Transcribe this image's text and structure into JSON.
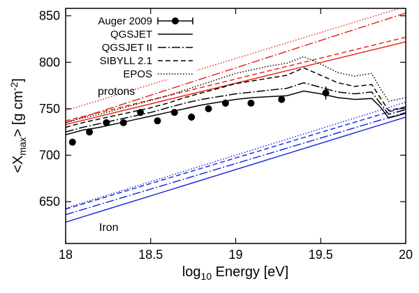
{
  "chart_data": {
    "type": "line",
    "xlabel_prefix": "log",
    "xlabel_sub": "10",
    "xlabel_suffix": " Energy [eV]",
    "ylabel_a": "<X",
    "ylabel_sub": "max",
    "ylabel_b": "> [g cm",
    "ylabel_sup": "-2",
    "ylabel_c": "]",
    "xlim": [
      18,
      20
    ],
    "ylim": [
      605,
      858
    ],
    "x_ticks": [
      18,
      18.5,
      19,
      19.5,
      20
    ],
    "x_tick_labels": [
      "18",
      "18.5",
      "19",
      "19.5",
      "20"
    ],
    "y_ticks": [
      650,
      700,
      750,
      800,
      850
    ],
    "y_tick_labels": [
      "650",
      "700",
      "750",
      "800",
      "850"
    ],
    "grid": false,
    "legend_position": "top-left",
    "legend": [
      {
        "label": "Auger 2009",
        "style": "points-errorbars"
      },
      {
        "label": "QGSJET",
        "style": "solid"
      },
      {
        "label": "QGSJET II",
        "style": "dashdot"
      },
      {
        "label": "SIBYLL 2.1",
        "style": "dashed"
      },
      {
        "label": "EPOS",
        "style": "dotted"
      }
    ],
    "annotations": {
      "protons": "protons",
      "iron": "Iron"
    },
    "colors": {
      "data": "#000000",
      "proton": "#e8281c",
      "iron": "#1c2fd8",
      "frame": "#000000"
    },
    "auger_2009": {
      "x": [
        18.04,
        18.14,
        18.24,
        18.34,
        18.44,
        18.54,
        18.64,
        18.74,
        18.84,
        18.94,
        19.09,
        19.27,
        19.53
      ],
      "y": [
        714,
        725,
        735,
        735,
        746,
        737,
        746,
        741,
        750,
        756,
        756,
        760,
        767
      ],
      "yerr": [
        2,
        2,
        2,
        2,
        2,
        2,
        3,
        4,
        3,
        4,
        3,
        4,
        7
      ]
    },
    "series": [
      {
        "name": "QGSJET",
        "group": "proton",
        "style": "solid",
        "x": [
          18,
          20
        ],
        "y": [
          733,
          822
        ]
      },
      {
        "name": "QGSJET II",
        "group": "proton",
        "style": "dashdot",
        "x": [
          18,
          20
        ],
        "y": [
          735,
          853
        ]
      },
      {
        "name": "SIBYLL 2.1",
        "group": "proton",
        "style": "dashed",
        "x": [
          18,
          20
        ],
        "y": [
          737,
          827
        ]
      },
      {
        "name": "EPOS",
        "group": "proton",
        "style": "dotted",
        "x": [
          18,
          20
        ],
        "y": [
          748,
          860
        ]
      },
      {
        "name": "QGSJET",
        "group": "iron",
        "style": "solid",
        "x": [
          18,
          20
        ],
        "y": [
          628,
          741
        ]
      },
      {
        "name": "QGSJET II",
        "group": "iron",
        "style": "dashdot",
        "x": [
          18,
          20
        ],
        "y": [
          636,
          746
        ]
      },
      {
        "name": "SIBYLL 2.1",
        "group": "iron",
        "style": "dashed",
        "x": [
          18,
          20
        ],
        "y": [
          642,
          752
        ]
      },
      {
        "name": "EPOS",
        "group": "iron",
        "style": "dotted",
        "x": [
          18,
          20
        ],
        "y": [
          643,
          757
        ]
      },
      {
        "name": "QGSJET",
        "group": "mixed",
        "style": "solid",
        "x": [
          18,
          18.1,
          18.2,
          18.3,
          18.4,
          18.5,
          18.6,
          18.7,
          18.8,
          18.9,
          19,
          19.1,
          19.2,
          19.3,
          19.4,
          19.5,
          19.6,
          19.7,
          19.8,
          19.85,
          19.9,
          20
        ],
        "y": [
          722,
          727,
          730,
          734,
          738,
          742,
          746,
          750,
          754,
          757,
          760,
          762,
          763,
          764,
          769,
          766,
          762,
          760,
          761,
          752,
          740,
          745
        ]
      },
      {
        "name": "QGSJET II",
        "group": "mixed",
        "style": "dashdot",
        "x": [
          18,
          18.1,
          18.2,
          18.3,
          18.4,
          18.5,
          18.6,
          18.7,
          18.8,
          18.9,
          19,
          19.1,
          19.2,
          19.3,
          19.4,
          19.5,
          19.6,
          19.7,
          19.8,
          19.85,
          19.9,
          20
        ],
        "y": [
          725,
          730,
          734,
          738,
          742,
          746,
          751,
          756,
          760,
          763,
          766,
          768,
          770,
          772,
          778,
          773,
          768,
          766,
          768,
          756,
          744,
          749
        ]
      },
      {
        "name": "SIBYLL 2.1",
        "group": "mixed",
        "style": "dashed",
        "x": [
          18,
          18.1,
          18.2,
          18.3,
          18.4,
          18.5,
          18.6,
          18.7,
          18.8,
          18.9,
          19,
          19.1,
          19.2,
          19.3,
          19.4,
          19.5,
          19.6,
          19.7,
          19.8,
          19.85,
          19.9,
          20
        ],
        "y": [
          730,
          735,
          739,
          743,
          747,
          751,
          756,
          762,
          767,
          772,
          777,
          780,
          783,
          786,
          794,
          786,
          778,
          774,
          776,
          762,
          748,
          752
        ]
      },
      {
        "name": "EPOS",
        "group": "mixed",
        "style": "dotted",
        "x": [
          18,
          18.1,
          18.2,
          18.3,
          18.4,
          18.5,
          18.6,
          18.7,
          18.8,
          18.9,
          19,
          19.1,
          19.2,
          19.3,
          19.4,
          19.5,
          19.6,
          19.7,
          19.8,
          19.85,
          19.9,
          20
        ],
        "y": [
          735,
          740,
          744,
          749,
          754,
          759,
          764,
          770,
          776,
          782,
          788,
          792,
          796,
          799,
          806,
          798,
          789,
          785,
          788,
          772,
          758,
          762
        ]
      }
    ]
  }
}
